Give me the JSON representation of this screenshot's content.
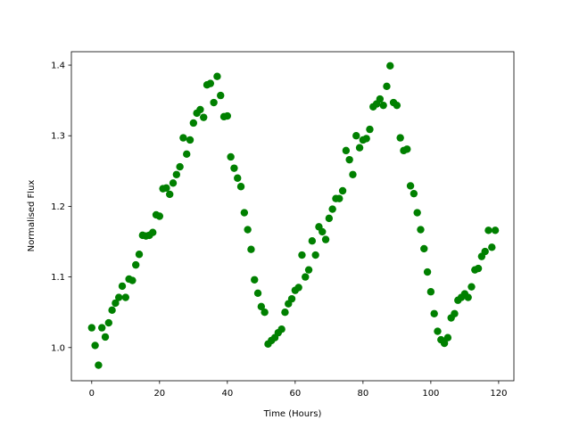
{
  "chart_data": {
    "type": "scatter",
    "xlabel": "Time (Hours)",
    "ylabel": "Normalised Flux",
    "xlim": [
      -6,
      124.5
    ],
    "ylim": [
      0.953,
      1.419
    ],
    "xticks": [
      0,
      20,
      40,
      60,
      80,
      100,
      120
    ],
    "yticks": [
      {
        "value": 1,
        "label": "1.0"
      },
      1.1,
      1.2,
      1.3,
      {
        "value": 1.4,
        "label": "1.4"
      }
    ],
    "series": [
      {
        "color": "#008000",
        "x": [
          0,
          1,
          2,
          3,
          4,
          5,
          6,
          7,
          8,
          9,
          10,
          11,
          12,
          13,
          14,
          15,
          16,
          17,
          18,
          19,
          20,
          21,
          22,
          23,
          24,
          25,
          26,
          27,
          28,
          29,
          30,
          31,
          32,
          33,
          34,
          35,
          36,
          37,
          38,
          39,
          40,
          41,
          42,
          43,
          44,
          45,
          46,
          47,
          48,
          49,
          50,
          51,
          52,
          53,
          54,
          55,
          56,
          57,
          58,
          59,
          60,
          61,
          62,
          63,
          64,
          65,
          66,
          67,
          68,
          69,
          70,
          71,
          72,
          73,
          74,
          75,
          76,
          77,
          78,
          79,
          80,
          81,
          82,
          83,
          84,
          85,
          86,
          87,
          88,
          89,
          90,
          91,
          92,
          93,
          94,
          95,
          96,
          97,
          98,
          99,
          100,
          101,
          102,
          103,
          104,
          105,
          106,
          107,
          108,
          109,
          110,
          111,
          112,
          113,
          114,
          115,
          116,
          117,
          118,
          119
        ],
        "values": [
          1.028,
          1.003,
          0.975,
          1.028,
          1.015,
          1.035,
          1.053,
          1.063,
          1.071,
          1.087,
          1.071,
          1.097,
          1.095,
          1.117,
          1.132,
          1.159,
          1.158,
          1.159,
          1.163,
          1.188,
          1.186,
          1.225,
          1.226,
          1.217,
          1.233,
          1.245,
          1.256,
          1.297,
          1.274,
          1.294,
          1.318,
          1.332,
          1.337,
          1.326,
          1.372,
          1.374,
          1.347,
          1.384,
          1.357,
          1.327,
          1.328,
          1.27,
          1.254,
          1.24,
          1.228,
          1.191,
          1.167,
          1.139,
          1.096,
          1.077,
          1.058,
          1.05,
          1.005,
          1.01,
          1.014,
          1.021,
          1.026,
          1.05,
          1.062,
          1.069,
          1.081,
          1.085,
          1.131,
          1.1,
          1.11,
          1.151,
          1.131,
          1.171,
          1.164,
          1.153,
          1.183,
          1.196,
          1.211,
          1.211,
          1.222,
          1.279,
          1.266,
          1.245,
          1.3,
          1.283,
          1.294,
          1.296,
          1.309,
          1.341,
          1.345,
          1.352,
          1.343,
          1.37,
          1.399,
          1.347,
          1.343,
          1.297,
          1.279,
          1.281,
          1.229,
          1.218,
          1.191,
          1.167,
          1.14,
          1.107,
          1.079,
          1.048,
          1.023,
          1.011,
          1.006,
          1.014,
          1.042,
          1.048,
          1.067,
          1.071,
          1.076,
          1.071,
          1.086,
          1.11,
          1.112,
          1.129,
          1.136,
          1.166,
          1.142,
          1.166
        ]
      }
    ]
  }
}
